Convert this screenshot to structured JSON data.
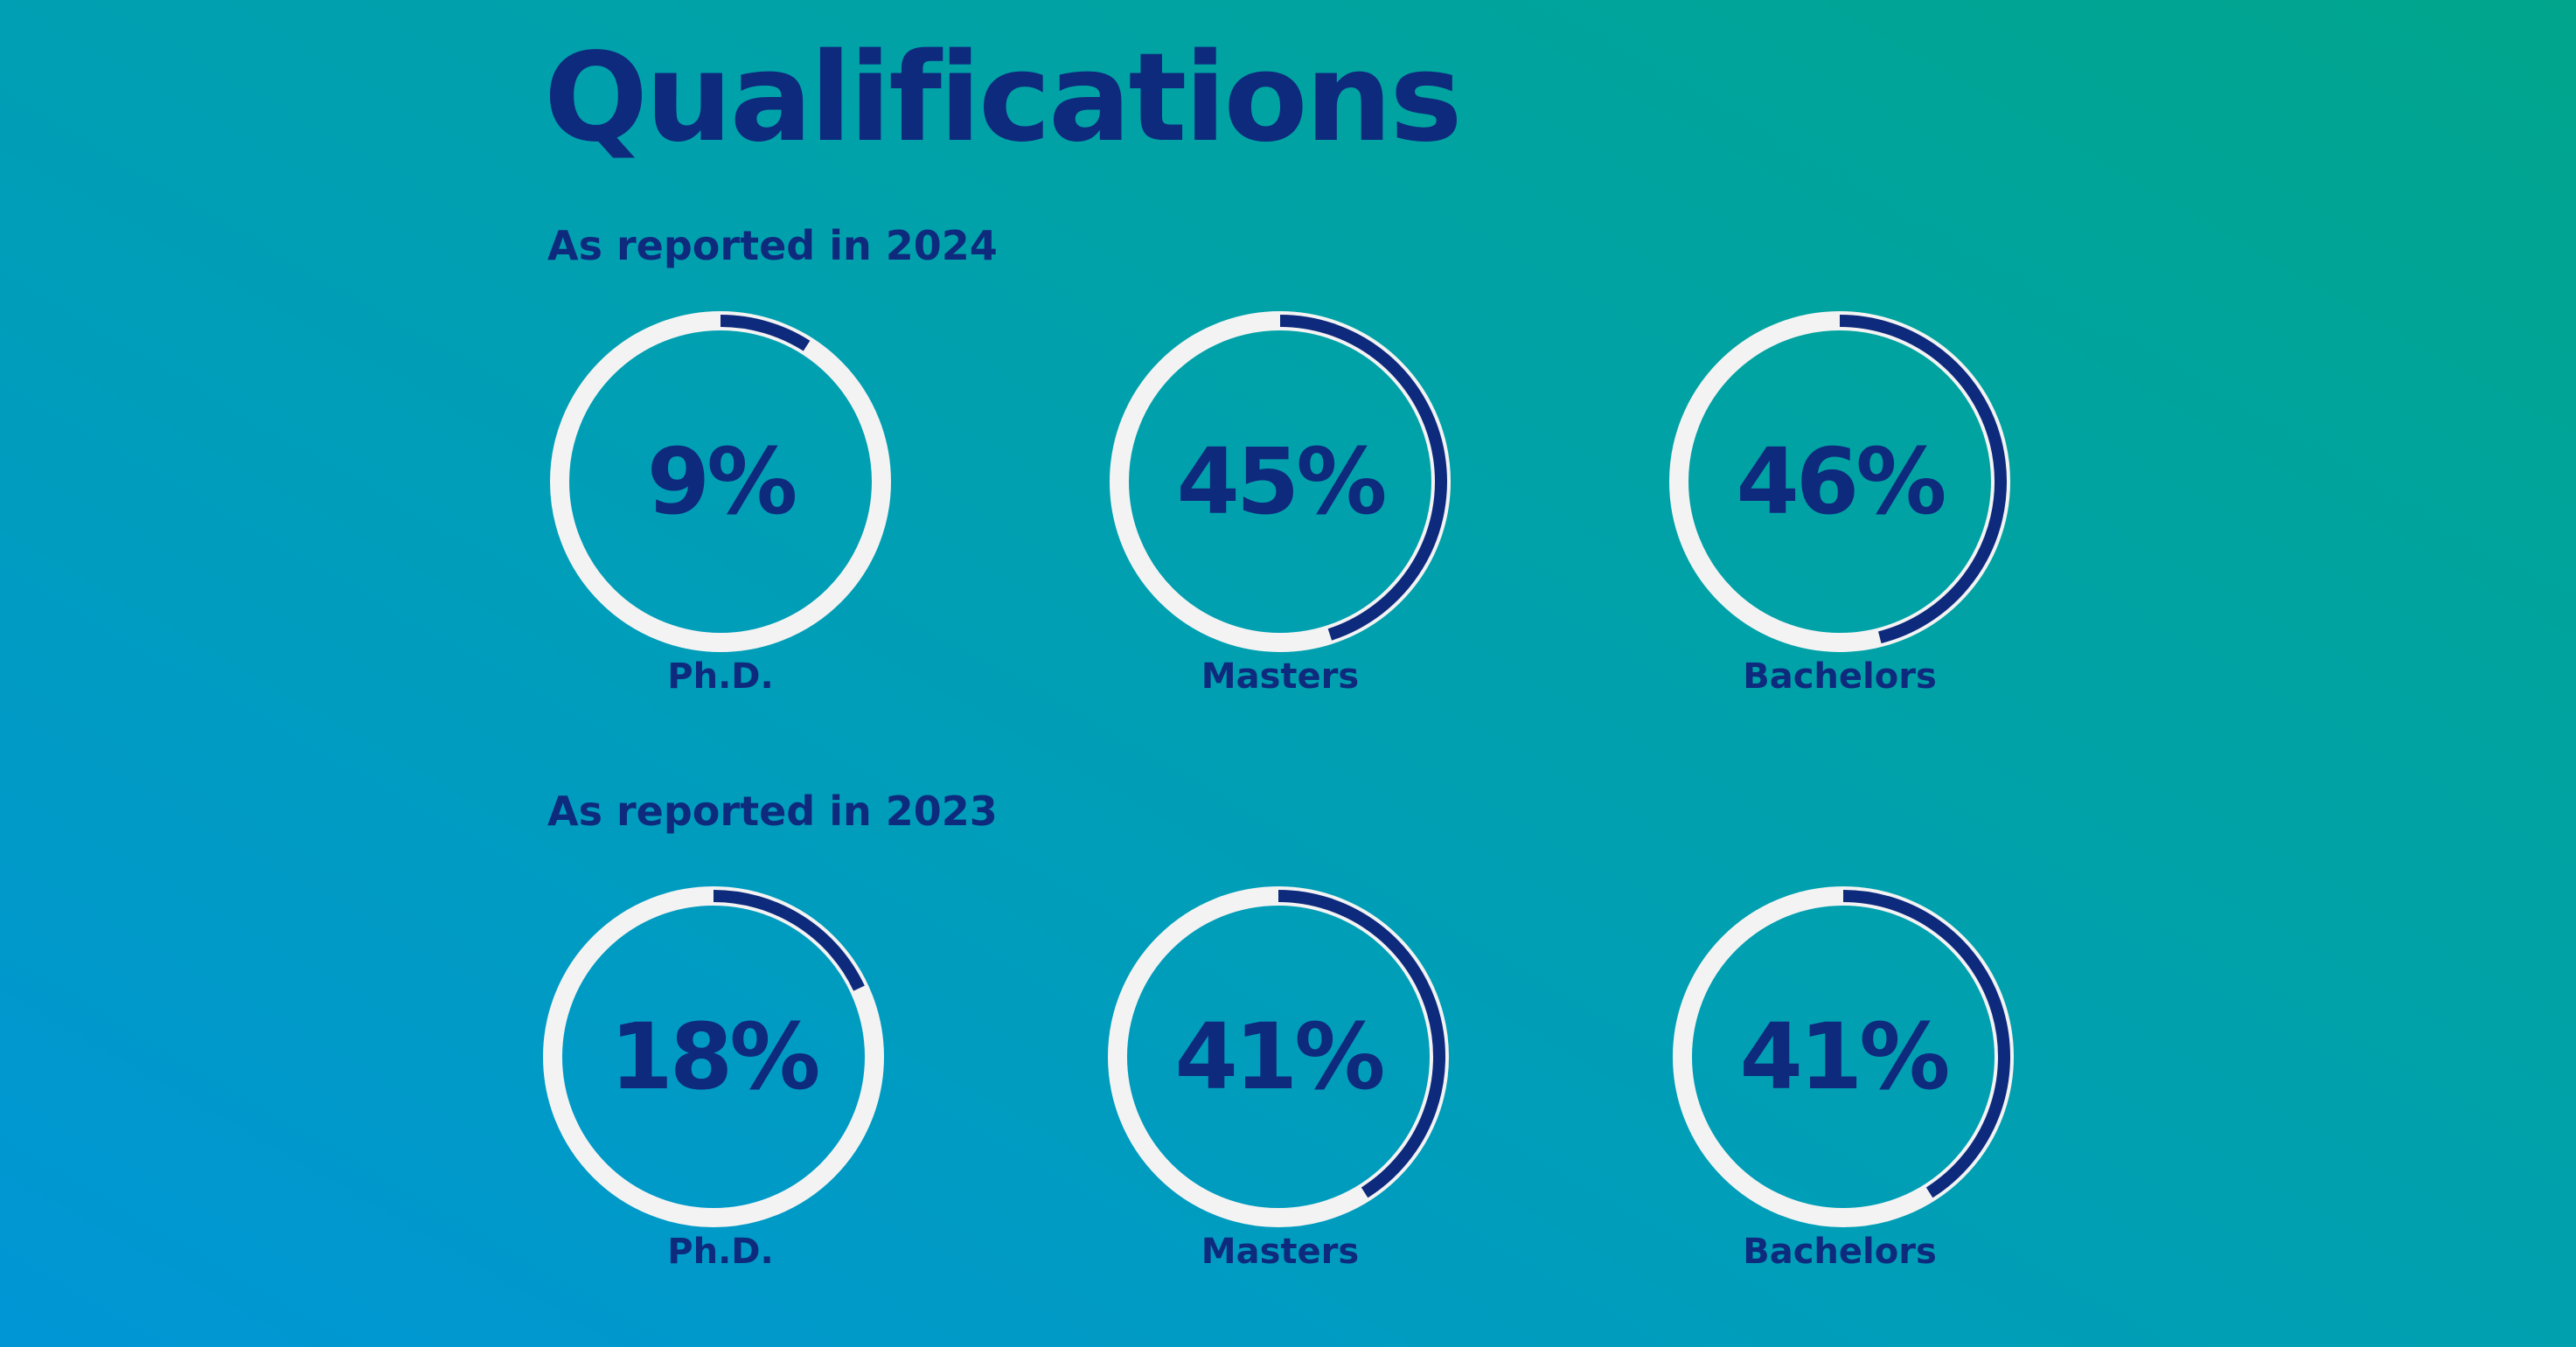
{
  "title": "Qualifications",
  "colors": {
    "ring": "#f3f3f3",
    "arc": "#0e2a7d",
    "text": "#0e2a7d"
  },
  "chart_data": [
    {
      "type": "pie",
      "subtitle": "As reported in 2024",
      "categories": [
        "Ph.D.",
        "Masters",
        "Bachelors"
      ],
      "labels": [
        "9%",
        "45%",
        "46%"
      ],
      "values": [
        9,
        45,
        46
      ]
    },
    {
      "type": "pie",
      "subtitle": "As reported in 2023",
      "categories": [
        "Ph.D.",
        "Masters",
        "Bachelors"
      ],
      "labels": [
        "18%",
        "41%",
        "41%"
      ],
      "values": [
        18,
        41,
        41
      ]
    }
  ]
}
